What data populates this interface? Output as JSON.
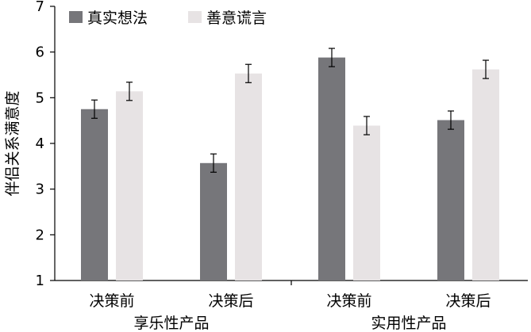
{
  "chart_data": {
    "type": "bar",
    "title": "",
    "ylabel": "伴侣关系满意度",
    "xlabel": "",
    "ylim": [
      1,
      7
    ],
    "yticks": [
      "1",
      "2",
      "3",
      "4",
      "5",
      "6",
      "7"
    ],
    "grid": false,
    "legend_position": "top-left",
    "groups": [
      "享乐性产品",
      "实用性产品"
    ],
    "categories": [
      "决策前",
      "决策后",
      "决策前",
      "决策后"
    ],
    "series": [
      {
        "name": "真实想法",
        "color": "#76767a",
        "values": [
          4.75,
          3.57,
          5.88,
          4.51
        ],
        "errors": [
          0.2,
          0.2,
          0.2,
          0.2
        ]
      },
      {
        "name": "善意谎言",
        "color": "#e7e3e4",
        "values": [
          5.14,
          5.53,
          4.39,
          5.62
        ],
        "errors": [
          0.2,
          0.2,
          0.2,
          0.2
        ]
      }
    ]
  }
}
